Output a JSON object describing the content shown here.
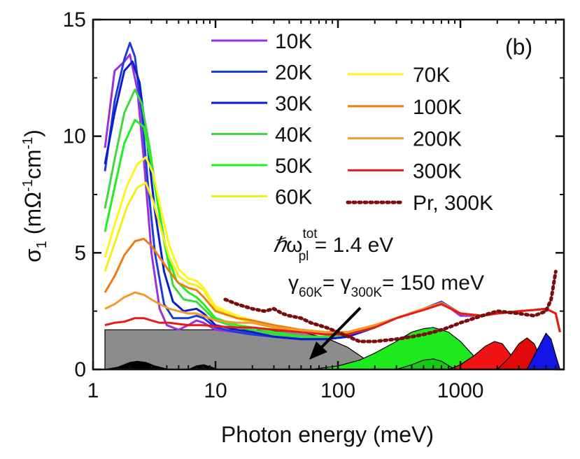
{
  "chart_data": {
    "type": "line",
    "panel_label": "(b)",
    "xlabel": "Photon energy (meV)",
    "ylabel_parts": {
      "sigma": "σ",
      "sub": "1",
      "open": "(mΩ",
      "exp1": "-1",
      "cm": "cm",
      "exp2": "-1",
      "close": ")"
    },
    "xscale": "log",
    "xlim": [
      1,
      7000
    ],
    "ylim": [
      0,
      15
    ],
    "x_ticks": [
      {
        "value": 1,
        "label": "1"
      },
      {
        "value": 10,
        "label": "10"
      },
      {
        "value": 100,
        "label": "100"
      },
      {
        "value": 1000,
        "label": "1000"
      }
    ],
    "y_ticks": [
      {
        "value": 0,
        "label": "0"
      },
      {
        "value": 5,
        "label": "5"
      },
      {
        "value": 10,
        "label": "10"
      },
      {
        "value": 15,
        "label": "15"
      }
    ],
    "legend_placement": "top-right, two columns",
    "annotations": {
      "plasma": {
        "hbar": "ℏ",
        "omega": "ω",
        "sup": "tot",
        "sub": "pl",
        "rest": " = 1.4 eV"
      },
      "scattering": {
        "g1": "γ",
        "sub1": "60K",
        "eq": "= γ",
        "sub2": "300K",
        "rest": "= 150 meV"
      }
    },
    "series": [
      {
        "name": "10K",
        "color": "#9b30d9",
        "style": "solid",
        "x": [
          1.25,
          1.5,
          1.8,
          2.0,
          2.3,
          2.6,
          3.0,
          3.5,
          4.0,
          5,
          6,
          7,
          8,
          10,
          15,
          20,
          30,
          50,
          80,
          120,
          200,
          300,
          500,
          700,
          1000,
          1500,
          2000,
          3000,
          4000,
          5000,
          6000,
          6500
        ],
        "y": [
          9.5,
          12.8,
          13.2,
          13.5,
          12.0,
          9.0,
          5.0,
          2.6,
          1.9,
          1.7,
          1.9,
          2.1,
          2.0,
          1.7,
          1.6,
          1.5,
          1.4,
          1.3,
          1.3,
          1.4,
          1.8,
          2.2,
          2.6,
          2.9,
          2.3,
          2.3,
          2.4,
          2.5,
          2.55,
          2.6,
          2.4,
          1.6
        ]
      },
      {
        "name": "20K",
        "color": "#1e3cd8",
        "style": "solid",
        "x": [
          1.25,
          1.5,
          1.8,
          2.0,
          2.2,
          2.5,
          2.8,
          3.2,
          3.8,
          4.5,
          6,
          7,
          8,
          10,
          15,
          20,
          30,
          50,
          80,
          120,
          200,
          300,
          500,
          700,
          1000,
          1500,
          2000,
          3000,
          4000,
          5000,
          6000,
          6500
        ],
        "y": [
          8.5,
          11.5,
          13.3,
          14.0,
          13.4,
          11.0,
          8.0,
          5.0,
          2.8,
          2.2,
          2.2,
          2.3,
          2.2,
          1.8,
          1.6,
          1.5,
          1.4,
          1.3,
          1.3,
          1.4,
          1.8,
          2.2,
          2.6,
          2.9,
          2.4,
          2.3,
          2.4,
          2.5,
          2.55,
          2.6,
          2.4,
          1.6
        ]
      },
      {
        "name": "30K",
        "color": "#0a1ed0",
        "style": "solid",
        "x": [
          1.25,
          1.5,
          1.8,
          2.1,
          2.4,
          2.8,
          3.2,
          3.8,
          4.5,
          5.5,
          7,
          8,
          10,
          15,
          20,
          30,
          50,
          80,
          120,
          200,
          300,
          500,
          700,
          1000,
          1500,
          2000,
          3000,
          4000,
          5000,
          6000,
          6500
        ],
        "y": [
          8.8,
          11.0,
          12.8,
          13.2,
          12.3,
          9.5,
          6.8,
          4.2,
          2.9,
          2.5,
          2.6,
          2.4,
          1.9,
          1.7,
          1.6,
          1.4,
          1.3,
          1.3,
          1.4,
          1.8,
          2.2,
          2.6,
          2.85,
          2.4,
          2.3,
          2.4,
          2.5,
          2.55,
          2.6,
          2.4,
          1.6
        ]
      },
      {
        "name": "40K",
        "color": "#3ed83e",
        "style": "solid",
        "x": [
          1.25,
          1.5,
          1.8,
          2.2,
          2.5,
          2.9,
          3.3,
          3.8,
          4.5,
          5.5,
          7,
          8,
          10,
          15,
          20,
          30,
          50,
          80,
          120,
          200,
          300,
          500,
          700,
          1000,
          1500,
          2000,
          3000,
          4000,
          5000,
          6000,
          6500
        ],
        "y": [
          6.9,
          9.0,
          11.0,
          12.0,
          11.4,
          9.5,
          7.5,
          5.5,
          3.6,
          3.0,
          2.9,
          2.6,
          2.1,
          1.8,
          1.7,
          1.5,
          1.4,
          1.4,
          1.5,
          1.8,
          2.2,
          2.6,
          2.85,
          2.4,
          2.3,
          2.4,
          2.5,
          2.55,
          2.6,
          2.4,
          1.6
        ]
      },
      {
        "name": "50K",
        "color": "#22f022",
        "style": "solid",
        "x": [
          1.25,
          1.5,
          1.8,
          2.2,
          2.6,
          3.0,
          3.4,
          4.0,
          4.8,
          6,
          7,
          8,
          10,
          15,
          20,
          30,
          50,
          80,
          120,
          200,
          300,
          500,
          700,
          1000,
          1500,
          2000,
          3000,
          4000,
          5000,
          6000,
          6500
        ],
        "y": [
          5.9,
          7.8,
          9.7,
          10.7,
          10.4,
          8.8,
          7.0,
          5.0,
          3.8,
          3.3,
          3.1,
          2.8,
          2.2,
          1.9,
          1.8,
          1.6,
          1.4,
          1.4,
          1.5,
          1.8,
          2.2,
          2.6,
          2.85,
          2.4,
          2.3,
          2.4,
          2.5,
          2.55,
          2.6,
          2.4,
          1.6
        ]
      },
      {
        "name": "60K",
        "color": "#f2ee1a",
        "style": "solid",
        "x": [
          1.25,
          1.5,
          1.9,
          2.3,
          2.7,
          3.1,
          3.6,
          4.2,
          5,
          6,
          7,
          8,
          10,
          15,
          20,
          30,
          50,
          80,
          120,
          200,
          300,
          500,
          700,
          1000,
          1500,
          2000,
          3000,
          4000,
          5000,
          6000,
          6500
        ],
        "y": [
          4.2,
          5.4,
          7.0,
          7.8,
          8.0,
          7.2,
          6.0,
          4.8,
          4.0,
          3.7,
          3.6,
          3.4,
          2.6,
          2.2,
          2.0,
          1.8,
          1.6,
          1.5,
          1.6,
          1.9,
          2.2,
          2.6,
          2.85,
          2.4,
          2.3,
          2.4,
          2.5,
          2.55,
          2.6,
          2.4,
          1.6
        ]
      },
      {
        "name": "70K",
        "color": "#fff41e",
        "style": "solid",
        "x": [
          1.25,
          1.5,
          1.9,
          2.3,
          2.7,
          3.1,
          3.6,
          4.2,
          5,
          6,
          7,
          8,
          10,
          15,
          20,
          30,
          50,
          80,
          120,
          200,
          300,
          500,
          700,
          1000,
          1500,
          2000,
          3000,
          4000,
          5000,
          6000,
          6500
        ],
        "y": [
          4.8,
          6.2,
          7.9,
          8.8,
          9.1,
          8.4,
          6.8,
          5.3,
          4.3,
          3.9,
          3.8,
          3.5,
          2.7,
          2.3,
          2.1,
          1.9,
          1.7,
          1.6,
          1.6,
          1.9,
          2.2,
          2.6,
          2.85,
          2.4,
          2.3,
          2.4,
          2.5,
          2.55,
          2.6,
          2.4,
          1.6
        ]
      },
      {
        "name": "100K",
        "color": "#f07b12",
        "style": "solid",
        "x": [
          1.25,
          1.5,
          1.8,
          2.2,
          2.6,
          3.0,
          3.5,
          4.2,
          5,
          6,
          7,
          8,
          10,
          15,
          20,
          30,
          50,
          80,
          120,
          200,
          300,
          500,
          700,
          1000,
          1500,
          2000,
          3000,
          4000,
          5000,
          6000,
          6500
        ],
        "y": [
          3.3,
          4.0,
          4.9,
          5.5,
          5.6,
          5.3,
          4.8,
          4.2,
          3.7,
          3.5,
          3.4,
          3.1,
          2.5,
          2.2,
          2.1,
          1.9,
          1.7,
          1.6,
          1.6,
          1.9,
          2.2,
          2.6,
          2.85,
          2.4,
          2.3,
          2.4,
          2.5,
          2.55,
          2.6,
          2.4,
          1.6
        ]
      },
      {
        "name": "200K",
        "color": "#f49a2a",
        "style": "solid",
        "x": [
          1.25,
          1.5,
          1.8,
          2.2,
          2.6,
          3.0,
          3.5,
          4.2,
          5,
          6,
          7,
          8,
          10,
          15,
          20,
          30,
          50,
          80,
          120,
          200,
          300,
          500,
          700,
          1000,
          1500,
          2000,
          3000,
          4000,
          5000,
          6000,
          6500
        ],
        "y": [
          2.6,
          2.8,
          3.1,
          3.3,
          3.2,
          3.0,
          2.8,
          2.6,
          2.5,
          2.4,
          2.4,
          2.3,
          2.1,
          2.0,
          2.0,
          1.8,
          1.7,
          1.6,
          1.6,
          1.9,
          2.2,
          2.6,
          2.8,
          2.4,
          2.3,
          2.4,
          2.5,
          2.55,
          2.6,
          2.4,
          1.6
        ]
      },
      {
        "name": "300K",
        "color": "#e8191c",
        "style": "solid",
        "x": [
          1.25,
          1.5,
          1.8,
          2.2,
          2.6,
          3.0,
          3.5,
          4.2,
          5,
          6,
          7,
          8,
          10,
          15,
          20,
          30,
          50,
          80,
          120,
          200,
          300,
          500,
          700,
          1000,
          1500,
          2000,
          3000,
          4000,
          5000,
          6000,
          6500
        ],
        "y": [
          1.9,
          2.0,
          2.05,
          2.2,
          2.2,
          2.1,
          2.0,
          2.0,
          1.95,
          1.9,
          1.9,
          1.9,
          1.85,
          1.8,
          1.8,
          1.7,
          1.6,
          1.5,
          1.5,
          1.8,
          2.2,
          2.55,
          2.8,
          2.4,
          2.3,
          2.4,
          2.5,
          2.55,
          2.6,
          2.4,
          1.6
        ]
      },
      {
        "name": "Pr, 300K",
        "color": "#7a0d0d",
        "style": "dotted",
        "x": [
          12,
          15,
          20,
          25,
          30,
          35,
          40,
          50,
          60,
          80,
          100,
          150,
          200,
          300,
          400,
          500,
          600,
          700,
          800,
          1000,
          1500,
          2000,
          3000,
          4000,
          5000,
          5500,
          6000
        ],
        "y": [
          3.0,
          2.8,
          2.6,
          2.5,
          2.6,
          2.4,
          2.3,
          2.2,
          2.0,
          1.8,
          1.6,
          1.2,
          1.2,
          1.3,
          1.4,
          1.5,
          1.6,
          1.7,
          1.8,
          2.0,
          2.3,
          2.5,
          2.4,
          2.3,
          2.5,
          3.0,
          4.2
        ]
      }
    ],
    "fill_components": [
      {
        "name": "Drude (grey)",
        "color": "#8c8c8c",
        "x": [
          1.25,
          20,
          50,
          80,
          120,
          160,
          200,
          220
        ],
        "y": [
          1.7,
          1.7,
          1.6,
          1.35,
          0.95,
          0.5,
          0.15,
          0
        ]
      },
      {
        "name": "phonon 1",
        "color": "#000000",
        "x": [
          1.25,
          1.6,
          2.0,
          2.3,
          2.7,
          3.2,
          4.0,
          5.0
        ],
        "y": [
          0,
          0.1,
          0.3,
          0.35,
          0.3,
          0.15,
          0.02,
          0
        ]
      },
      {
        "name": "phonon 2",
        "color": "#000000",
        "x": [
          6.0,
          7.0,
          8.0,
          9.0,
          10.5
        ],
        "y": [
          0,
          0.15,
          0.2,
          0.12,
          0
        ]
      },
      {
        "name": "Lorentz green",
        "color": "#1ee81e",
        "x": [
          60,
          100,
          150,
          200,
          300,
          400,
          500,
          600,
          800,
          1000,
          1300,
          1700
        ],
        "y": [
          0,
          0.15,
          0.4,
          0.7,
          1.2,
          1.6,
          1.75,
          1.8,
          1.6,
          1.2,
          0.55,
          0
        ]
      },
      {
        "name": "Lorentz green small",
        "color": "#14c814",
        "x": [
          300,
          400,
          500,
          600,
          700,
          900
        ],
        "y": [
          0,
          0.2,
          0.4,
          0.45,
          0.35,
          0
        ]
      },
      {
        "name": "Lorentz red 1",
        "color": "#f01414",
        "x": [
          800,
          1000,
          1300,
          1600,
          1900,
          2200,
          2600,
          3000
        ],
        "y": [
          0,
          0.2,
          0.6,
          1.0,
          1.2,
          1.1,
          0.6,
          0
        ]
      },
      {
        "name": "Lorentz red 2",
        "color": "#e00a0a",
        "x": [
          2000,
          2500,
          3000,
          3500,
          4000,
          4500,
          5000
        ],
        "y": [
          0,
          0.5,
          1.1,
          1.35,
          1.1,
          0.5,
          0
        ]
      },
      {
        "name": "Lorentz blue",
        "color": "#1414e6",
        "x": [
          3500,
          4200,
          5000,
          5500,
          6000,
          6500
        ],
        "y": [
          0,
          0.8,
          1.55,
          1.3,
          0.6,
          0
        ]
      }
    ]
  }
}
